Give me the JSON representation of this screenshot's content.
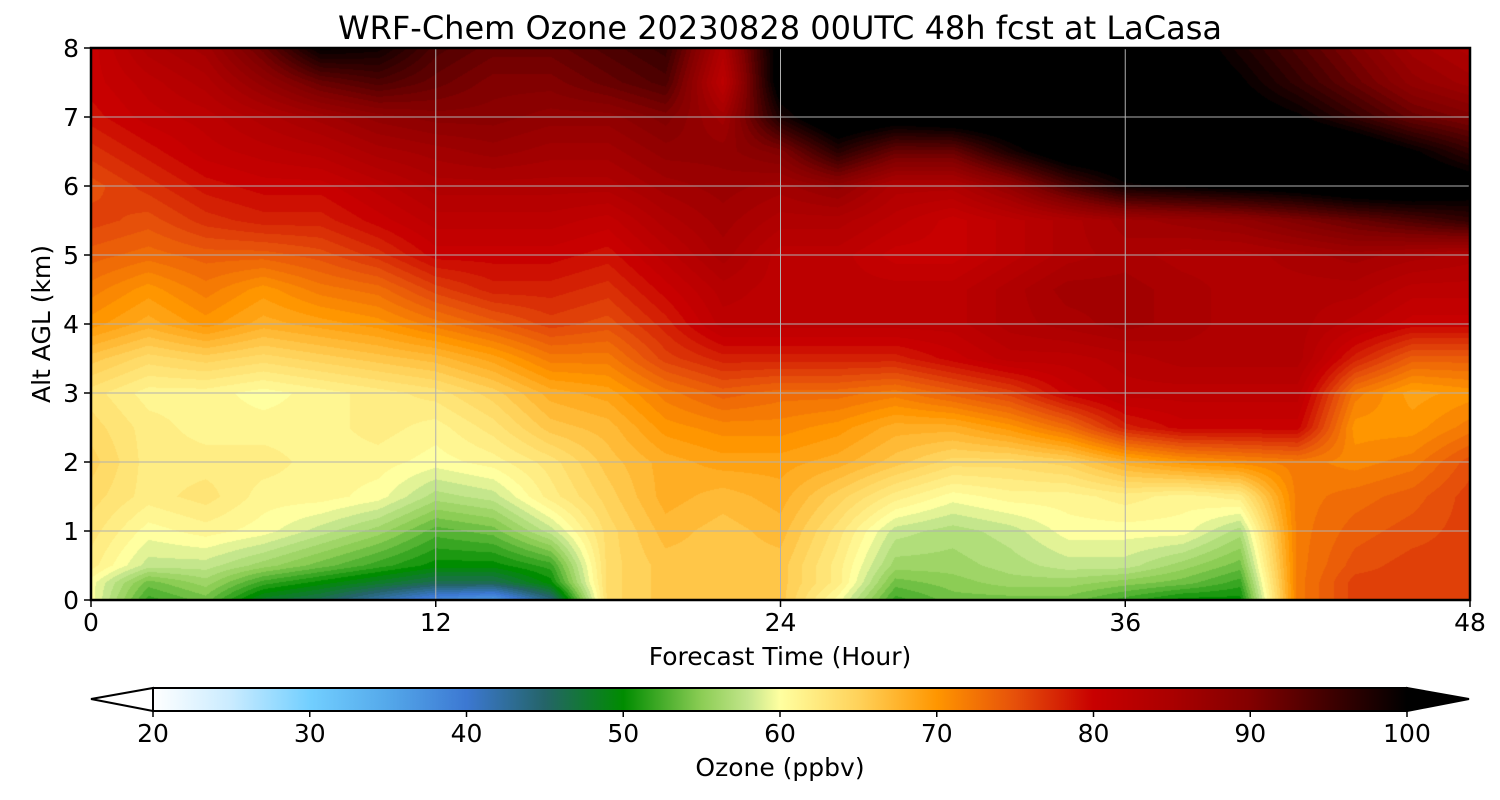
{
  "chart_data": {
    "type": "heatmap",
    "title": "WRF-Chem Ozone  20230828 00UTC 48h fcst at LaCasa",
    "xlabel": "Forecast Time (Hour)",
    "ylabel": "Alt AGL (km)",
    "xlim": [
      0,
      48
    ],
    "ylim": [
      0,
      8
    ],
    "x_ticks": [
      0,
      12,
      24,
      36,
      48
    ],
    "y_ticks": [
      0,
      1,
      2,
      3,
      4,
      5,
      6,
      7,
      8
    ],
    "grid": true,
    "x_hours": [
      0,
      2,
      4,
      6,
      8,
      10,
      12,
      14,
      16,
      18,
      20,
      22,
      24,
      26,
      28,
      30,
      32,
      34,
      36,
      38,
      40,
      42,
      44,
      46,
      48
    ],
    "altitudes_km": [
      0,
      0.25,
      0.5,
      1,
      1.5,
      2,
      2.5,
      3,
      3.5,
      4,
      4.5,
      5,
      5.5,
      6,
      6.5,
      7,
      7.5,
      8
    ],
    "ozone_ppbv": [
      [
        60,
        52,
        54,
        48,
        46,
        42,
        38,
        36,
        44,
        64,
        66,
        66,
        66,
        60,
        52,
        54,
        54,
        54,
        52,
        50,
        50,
        72,
        76,
        76,
        76
      ],
      [
        60,
        54,
        56,
        52,
        50,
        48,
        46,
        46,
        50,
        64,
        66,
        66,
        66,
        62,
        54,
        55,
        56,
        56,
        55,
        54,
        52,
        72,
        76,
        76,
        76
      ],
      [
        62,
        58,
        58,
        56,
        54,
        52,
        50,
        50,
        52,
        64,
        66,
        66,
        66,
        62,
        56,
        56,
        57,
        58,
        58,
        56,
        54,
        72,
        75,
        76,
        76
      ],
      [
        63,
        60,
        61,
        60,
        58,
        56,
        53,
        54,
        58,
        64,
        67,
        66,
        67,
        63,
        58,
        57,
        58,
        60,
        60,
        60,
        57,
        72,
        74,
        75,
        76
      ],
      [
        64,
        62,
        63,
        61,
        61,
        60,
        57,
        58,
        62,
        65,
        68,
        67,
        68,
        65,
        62,
        60,
        61,
        61,
        62,
        61,
        62,
        72,
        73,
        74,
        76
      ],
      [
        65,
        62,
        62,
        62,
        61,
        61,
        60,
        61,
        63,
        66,
        68,
        69,
        69,
        68,
        66,
        64,
        64,
        65,
        68,
        70,
        71,
        72,
        71,
        72,
        75
      ],
      [
        64,
        62,
        61,
        61,
        61,
        62,
        61,
        63,
        66,
        67,
        70,
        71,
        71,
        70,
        68,
        68,
        70,
        73,
        78,
        80,
        80,
        80,
        70,
        70,
        72
      ],
      [
        63,
        61,
        61,
        60,
        61,
        62,
        63,
        65,
        68,
        69,
        72,
        74,
        73,
        73,
        72,
        74,
        76,
        80,
        82,
        82,
        82,
        82,
        72,
        69,
        70
      ],
      [
        66,
        64,
        65,
        64,
        65,
        66,
        67,
        69,
        72,
        72,
        76,
        78,
        78,
        78,
        78,
        80,
        82,
        82,
        83,
        84,
        84,
        84,
        78,
        74,
        74
      ],
      [
        70,
        68,
        70,
        68,
        69,
        70,
        72,
        74,
        76,
        75,
        78,
        82,
        82,
        82,
        82,
        82,
        84,
        85,
        86,
        85,
        84,
        84,
        82,
        80,
        80
      ],
      [
        72,
        70,
        72,
        70,
        72,
        73,
        76,
        78,
        78,
        77,
        80,
        83,
        82,
        82,
        82,
        82,
        84,
        86,
        86,
        85,
        84,
        84,
        84,
        82,
        82
      ],
      [
        74,
        73,
        74,
        74,
        75,
        77,
        80,
        80,
        80,
        79,
        82,
        85,
        82,
        82,
        80,
        80,
        82,
        84,
        85,
        84,
        84,
        85,
        86,
        85,
        84
      ],
      [
        76,
        75,
        77,
        78,
        78,
        80,
        82,
        82,
        82,
        81,
        84,
        86,
        84,
        84,
        82,
        80,
        82,
        84,
        86,
        87,
        88,
        90,
        92,
        94,
        96
      ],
      [
        75,
        77,
        79,
        80,
        80,
        82,
        84,
        84,
        84,
        84,
        86,
        87,
        86,
        88,
        84,
        84,
        88,
        94,
        99,
        100,
        101,
        102,
        104,
        104,
        102
      ],
      [
        77,
        79,
        81,
        82,
        83,
        85,
        86,
        87,
        86,
        86,
        88,
        88,
        90,
        97,
        92,
        92,
        98,
        103,
        104,
        105,
        106,
        106,
        104,
        100,
        96
      ],
      [
        79,
        81,
        82,
        84,
        86,
        88,
        89,
        89,
        88,
        88,
        90,
        86,
        98,
        104,
        102,
        103,
        104,
        105,
        105,
        104,
        102,
        100,
        96,
        92,
        90
      ],
      [
        80,
        82,
        84,
        88,
        92,
        94,
        92,
        90,
        90,
        92,
        94,
        82,
        102,
        104,
        104,
        104,
        104,
        104,
        104,
        103,
        100,
        96,
        92,
        88,
        86
      ],
      [
        80,
        84,
        86,
        92,
        100,
        99,
        94,
        92,
        92,
        94,
        96,
        84,
        102,
        104,
        104,
        104,
        104,
        104,
        104,
        102,
        98,
        94,
        90,
        86,
        84
      ]
    ],
    "colorbar": {
      "label": "Ozone  (ppbv)",
      "range": [
        20,
        100
      ],
      "ticks": [
        20,
        30,
        40,
        50,
        60,
        70,
        80,
        90,
        100
      ],
      "extend": "both",
      "orientation": "horizontal",
      "color_stops": [
        {
          "value": 20,
          "color": "#ffffff"
        },
        {
          "value": 25,
          "color": "#c9ebff"
        },
        {
          "value": 30,
          "color": "#72cfff"
        },
        {
          "value": 35,
          "color": "#54a8ea"
        },
        {
          "value": 40,
          "color": "#3c78d2"
        },
        {
          "value": 45,
          "color": "#246468"
        },
        {
          "value": 50,
          "color": "#008c00"
        },
        {
          "value": 55,
          "color": "#8ccd55"
        },
        {
          "value": 58,
          "color": "#c4e68c"
        },
        {
          "value": 60,
          "color": "#ffffa0"
        },
        {
          "value": 65,
          "color": "#ffd25a"
        },
        {
          "value": 70,
          "color": "#ff9600"
        },
        {
          "value": 75,
          "color": "#e6500a"
        },
        {
          "value": 80,
          "color": "#c80000"
        },
        {
          "value": 85,
          "color": "#aa0000"
        },
        {
          "value": 90,
          "color": "#820000"
        },
        {
          "value": 95,
          "color": "#400000"
        },
        {
          "value": 100,
          "color": "#000000"
        }
      ]
    }
  }
}
